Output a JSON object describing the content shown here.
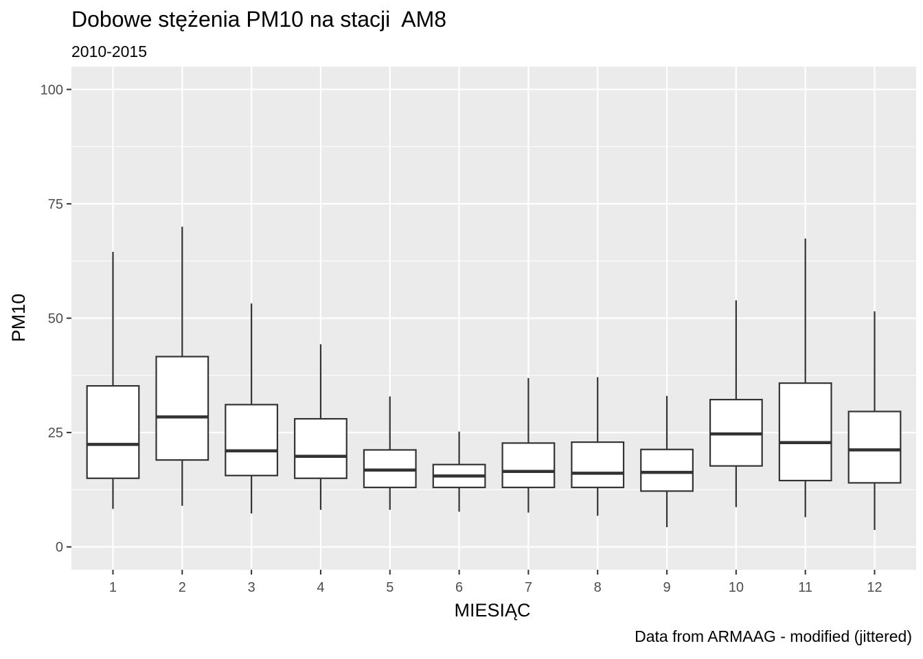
{
  "title": "Dobowe stężenia PM10 na stacji  AM8",
  "subtitle": "2010-2015",
  "caption": "Data from ARMAAG - modified (jittered)",
  "colors": {
    "panel_background": "#ebebeb",
    "grid": "#ffffff",
    "box_fill": "#ffffff",
    "box_line": "#333333",
    "tick_text": "#4d4d4d"
  },
  "chart_data": {
    "type": "boxplot",
    "xlabel": "MIESIĄC",
    "ylabel": "PM10",
    "ylim": [
      -5,
      105
    ],
    "yticks": [
      0,
      25,
      50,
      75,
      100
    ],
    "grid": true,
    "categories": [
      "1",
      "2",
      "3",
      "4",
      "5",
      "6",
      "7",
      "8",
      "9",
      "10",
      "11",
      "12"
    ],
    "boxes": [
      {
        "category": "1",
        "whisker_low": 8.3,
        "q1": 15.0,
        "median": 22.4,
        "q3": 35.2,
        "whisker_high": 64.5
      },
      {
        "category": "2",
        "whisker_low": 9.0,
        "q1": 19.0,
        "median": 28.4,
        "q3": 41.6,
        "whisker_high": 70.0
      },
      {
        "category": "3",
        "whisker_low": 7.3,
        "q1": 15.6,
        "median": 21.0,
        "q3": 31.1,
        "whisker_high": 53.2
      },
      {
        "category": "4",
        "whisker_low": 8.1,
        "q1": 15.0,
        "median": 19.8,
        "q3": 28.0,
        "whisker_high": 44.3
      },
      {
        "category": "5",
        "whisker_low": 8.1,
        "q1": 13.0,
        "median": 16.8,
        "q3": 21.2,
        "whisker_high": 32.9
      },
      {
        "category": "6",
        "whisker_low": 7.7,
        "q1": 13.0,
        "median": 15.5,
        "q3": 18.0,
        "whisker_high": 25.2
      },
      {
        "category": "7",
        "whisker_low": 7.5,
        "q1": 13.0,
        "median": 16.5,
        "q3": 22.7,
        "whisker_high": 36.9
      },
      {
        "category": "8",
        "whisker_low": 6.8,
        "q1": 13.0,
        "median": 16.1,
        "q3": 22.9,
        "whisker_high": 37.1
      },
      {
        "category": "9",
        "whisker_low": 4.3,
        "q1": 12.2,
        "median": 16.3,
        "q3": 21.3,
        "whisker_high": 33.0
      },
      {
        "category": "10",
        "whisker_low": 8.7,
        "q1": 17.7,
        "median": 24.7,
        "q3": 32.2,
        "whisker_high": 53.9
      },
      {
        "category": "11",
        "whisker_low": 6.5,
        "q1": 14.5,
        "median": 22.8,
        "q3": 35.8,
        "whisker_high": 67.4
      },
      {
        "category": "12",
        "whisker_low": 3.7,
        "q1": 14.0,
        "median": 21.2,
        "q3": 29.6,
        "whisker_high": 51.5
      }
    ]
  }
}
